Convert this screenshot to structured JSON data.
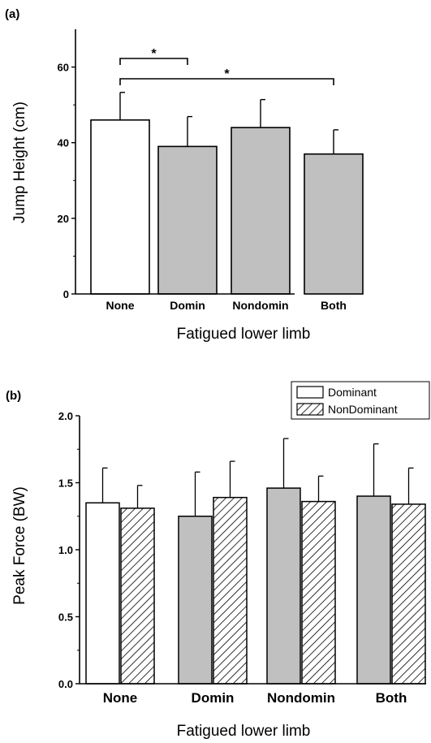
{
  "chart_data": [
    {
      "type": "bar",
      "panel_label": "(a)",
      "categories": [
        "None",
        "Domin",
        "Nondomin",
        "Both"
      ],
      "values": [
        46,
        39,
        44,
        37
      ],
      "errors": [
        7.3,
        7.9,
        7.4,
        6.4
      ],
      "bar_colors": [
        "#ffffff",
        "#c0c0c0",
        "#c0c0c0",
        "#c0c0c0"
      ],
      "xlabel": "Fatigued lower limb",
      "ylabel": "Jump Height (cm)",
      "ylim": [
        0,
        70
      ],
      "yticks": [
        0,
        20,
        40,
        60
      ],
      "grid": false,
      "significance": [
        {
          "from": "None",
          "to": "Domin",
          "label": "*"
        },
        {
          "from": "None",
          "to": "Both",
          "label": "*"
        }
      ]
    },
    {
      "type": "bar",
      "panel_label": "(b)",
      "categories": [
        "None",
        "Domin",
        "Nondomin",
        "Both"
      ],
      "series": [
        {
          "name": "Dominant",
          "values": [
            1.35,
            1.25,
            1.46,
            1.4
          ],
          "errors": [
            0.26,
            0.33,
            0.37,
            0.39
          ],
          "pattern": "solid"
        },
        {
          "name": "NonDominant",
          "values": [
            1.31,
            1.39,
            1.36,
            1.34
          ],
          "errors": [
            0.17,
            0.27,
            0.19,
            0.27
          ],
          "pattern": "hatched"
        }
      ],
      "first_category_color": "#ffffff",
      "bar_color": "#c0c0c0",
      "xlabel": "Fatigued lower limb",
      "ylabel": "Peak Force (BW)",
      "ylim": [
        0,
        2.0
      ],
      "yticks": [
        "0.0",
        "0.5",
        "1.0",
        "1.5",
        "2.0"
      ],
      "legend_position": "top-right",
      "grid": false
    }
  ]
}
